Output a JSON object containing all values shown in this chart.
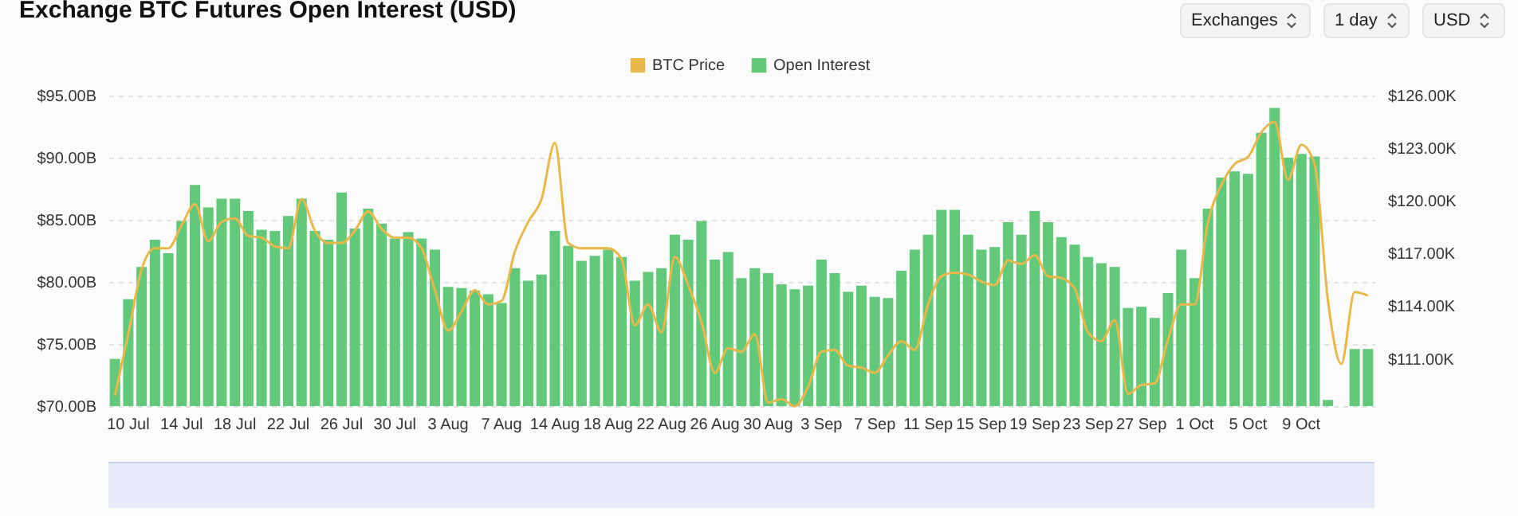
{
  "chart_data": {
    "type": "bar",
    "title": "Exchange BTC Futures Open Interest (USD)",
    "annotations": [
      "Exchanges",
      "1 day",
      "USD"
    ],
    "categories": [
      null,
      "10 Jul",
      null,
      null,
      null,
      "14 Jul",
      null,
      null,
      null,
      "18 Jul",
      null,
      null,
      null,
      "22 Jul",
      null,
      null,
      null,
      "26 Jul",
      null,
      null,
      null,
      "30 Jul",
      null,
      null,
      null,
      "3 Aug",
      null,
      null,
      null,
      "7 Aug",
      null,
      null,
      null,
      "14 Aug",
      null,
      null,
      null,
      "18 Aug",
      null,
      null,
      null,
      "22 Aug",
      null,
      null,
      null,
      "26 Aug",
      null,
      null,
      null,
      "30 Aug",
      null,
      null,
      null,
      "3 Sep",
      null,
      null,
      null,
      "7 Sep",
      null,
      null,
      null,
      "11 Sep",
      null,
      null,
      null,
      "15 Sep",
      null,
      null,
      null,
      "19 Sep",
      null,
      null,
      null,
      "23 Sep",
      null,
      null,
      null,
      "27 Sep",
      null,
      null,
      null,
      "1 Oct",
      null,
      null,
      null,
      "5 Oct",
      null,
      null,
      null,
      "9 Oct",
      null,
      null,
      null,
      null,
      null
    ],
    "series": [
      {
        "name": "BTC Price",
        "type": "line",
        "axis": "y2",
        "color": "#e8b94a",
        "values": [
          108.9,
          112.4,
          116.1,
          117.3,
          117.3,
          118.6,
          119.8,
          117.7,
          118.8,
          119.0,
          118.0,
          117.9,
          117.4,
          117.3,
          120.1,
          118.3,
          117.6,
          117.6,
          118.3,
          119.4,
          118.4,
          117.9,
          117.9,
          117.3,
          114.9,
          112.6,
          113.7,
          114.9,
          114.1,
          114.3,
          117.1,
          118.8,
          120.1,
          123.3,
          117.6,
          117.3,
          117.3,
          117.3,
          116.7,
          112.9,
          114.1,
          112.5,
          116.8,
          115.2,
          113.1,
          110.2,
          111.6,
          111.4,
          112.4,
          108.5,
          108.7,
          108.3,
          109.4,
          111.4,
          111.5,
          110.6,
          110.5,
          110.2,
          111.2,
          112.0,
          111.5,
          114.1,
          115.7,
          115.9,
          115.8,
          115.4,
          115.2,
          116.6,
          116.4,
          116.9,
          115.7,
          115.6,
          115.0,
          112.5,
          112.0,
          113.2,
          109.0,
          109.5,
          109.6,
          112.1,
          114.1,
          114.1,
          118.8,
          120.9,
          122.1,
          122.5,
          123.9,
          124.5,
          121.2,
          123.2,
          122.1,
          114.3,
          110.7,
          114.8,
          114.6
        ]
      },
      {
        "name": "Open Interest",
        "color": "#62c97b",
        "values": [
          73.8,
          78.6,
          81.2,
          83.4,
          82.3,
          84.9,
          87.8,
          86.0,
          86.7,
          86.7,
          85.7,
          84.2,
          84.1,
          85.3,
          86.7,
          84.1,
          83.4,
          87.2,
          84.3,
          85.9,
          84.7,
          83.5,
          84.0,
          83.5,
          82.6,
          79.6,
          79.5,
          79.3,
          79.0,
          78.3,
          81.1,
          80.1,
          80.6,
          84.1,
          82.9,
          81.7,
          82.1,
          82.6,
          82.0,
          80.1,
          80.8,
          81.1,
          83.8,
          83.4,
          84.9,
          81.8,
          82.4,
          80.3,
          81.1,
          80.7,
          79.8,
          79.4,
          79.7,
          81.8,
          80.7,
          79.2,
          79.7,
          78.8,
          78.7,
          80.9,
          82.6,
          83.8,
          85.8,
          85.8,
          83.8,
          82.6,
          82.8,
          84.8,
          83.8,
          85.7,
          84.8,
          83.6,
          83.0,
          82.0,
          81.5,
          81.2,
          77.9,
          78.0,
          77.1,
          79.1,
          82.6,
          80.3,
          85.9,
          88.4,
          88.9,
          88.7,
          92.0,
          94.0,
          90.0,
          90.3,
          90.1,
          70.5,
          null,
          74.6,
          74.6
        ]
      }
    ],
    "ylim": [
      70,
      95
    ],
    "yticks": [
      {
        "value": 70,
        "label": "$70.00B"
      },
      {
        "value": 75,
        "label": "$75.00B"
      },
      {
        "value": 80,
        "label": "$80.00B"
      },
      {
        "value": 85,
        "label": "$85.00B"
      },
      {
        "value": 90,
        "label": "$90.00B"
      },
      {
        "value": 95,
        "label": "$95.00B"
      }
    ],
    "y2lim": [
      108.3,
      126
    ],
    "y2ticks": [
      {
        "value": 111,
        "label": "$111.00K"
      },
      {
        "value": 114,
        "label": "$114.00K"
      },
      {
        "value": 117,
        "label": "$117.00K"
      },
      {
        "value": 120,
        "label": "$120.00K"
      },
      {
        "value": 123,
        "label": "$123.00K"
      },
      {
        "value": 126,
        "label": "$126.00K"
      }
    ],
    "grid": "y",
    "legend": "top",
    "marker": "none",
    "line_style": "solid"
  }
}
